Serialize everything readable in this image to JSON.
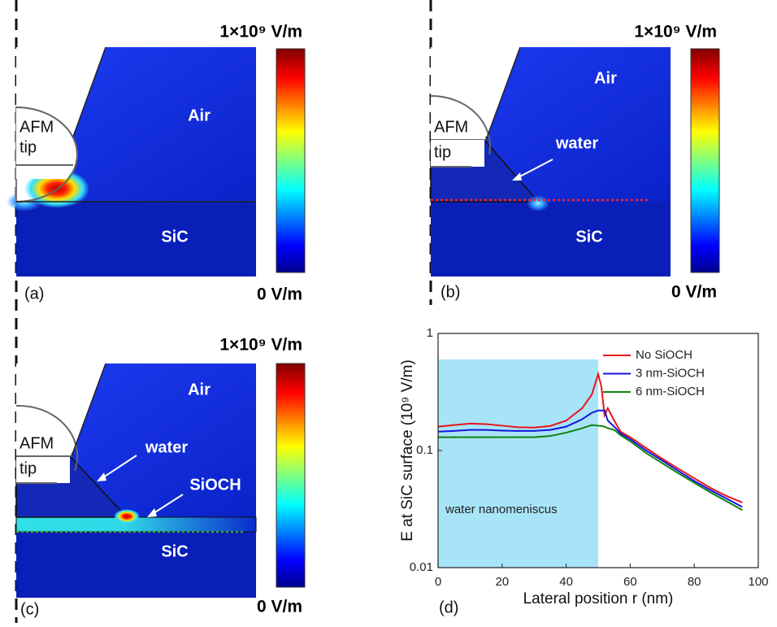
{
  "panels": [
    {
      "label": "(a)",
      "colorbar_max": "1×10⁹ V/m",
      "colorbar_min": "0 V/m",
      "tip": [
        "AFM",
        "tip"
      ],
      "regions": [
        "Air",
        "SiC"
      ]
    },
    {
      "label": "(b)",
      "colorbar_max": "1×10⁹ V/m",
      "colorbar_min": "0 V/m",
      "tip": [
        "AFM",
        "tip"
      ],
      "regions": [
        "Air",
        "water",
        "SiC"
      ]
    },
    {
      "label": "(c)",
      "colorbar_max": "1×10⁹ V/m",
      "colorbar_min": "0 V/m",
      "tip": [
        "AFM",
        "tip"
      ],
      "regions": [
        "Air",
        "water",
        "SiOCH",
        "SiC"
      ]
    }
  ],
  "chart_data": {
    "type": "line",
    "panel_label": "(d)",
    "xlabel": "Lateral position r (nm)",
    "ylabel": "E at SiC surface (10⁹ V/m)",
    "x": [
      0,
      5,
      10,
      15,
      20,
      25,
      30,
      35,
      40,
      45,
      48,
      50,
      51,
      52,
      53,
      55,
      57,
      60,
      65,
      70,
      75,
      80,
      85,
      90,
      95
    ],
    "series": [
      {
        "name": "No SiOCH",
        "color": "#e8141c",
        "values": [
          0.16,
          0.165,
          0.17,
          0.168,
          0.163,
          0.158,
          0.157,
          0.162,
          0.18,
          0.23,
          0.3,
          0.45,
          0.35,
          0.2,
          0.23,
          0.18,
          0.145,
          0.13,
          0.105,
          0.085,
          0.07,
          0.058,
          0.048,
          0.041,
          0.036
        ]
      },
      {
        "name": "3 nm-SiOCH",
        "color": "#1414e0",
        "values": [
          0.145,
          0.147,
          0.15,
          0.15,
          0.148,
          0.147,
          0.147,
          0.15,
          0.16,
          0.185,
          0.21,
          0.22,
          0.22,
          0.22,
          0.18,
          0.16,
          0.14,
          0.125,
          0.1,
          0.082,
          0.067,
          0.055,
          0.046,
          0.039,
          0.033
        ]
      },
      {
        "name": "6 nm-SiOCH",
        "color": "#108010",
        "values": [
          0.13,
          0.13,
          0.13,
          0.13,
          0.13,
          0.13,
          0.13,
          0.133,
          0.142,
          0.155,
          0.165,
          0.163,
          0.162,
          0.16,
          0.155,
          0.15,
          0.135,
          0.12,
          0.095,
          0.078,
          0.064,
          0.053,
          0.044,
          0.037,
          0.031
        ]
      }
    ],
    "xlim": [
      0,
      100
    ],
    "xticks": [
      0,
      20,
      40,
      60,
      80,
      100
    ],
    "ylim": [
      0.01,
      1
    ],
    "yticks": [
      0.01,
      0.1,
      1
    ],
    "log_y": true,
    "legend": "upper right",
    "annotation": "water nanomeniscus",
    "shaded_region": {
      "x": [
        0,
        50
      ],
      "y": [
        0.01,
        0.6
      ],
      "color": "#a8e4f8"
    }
  }
}
